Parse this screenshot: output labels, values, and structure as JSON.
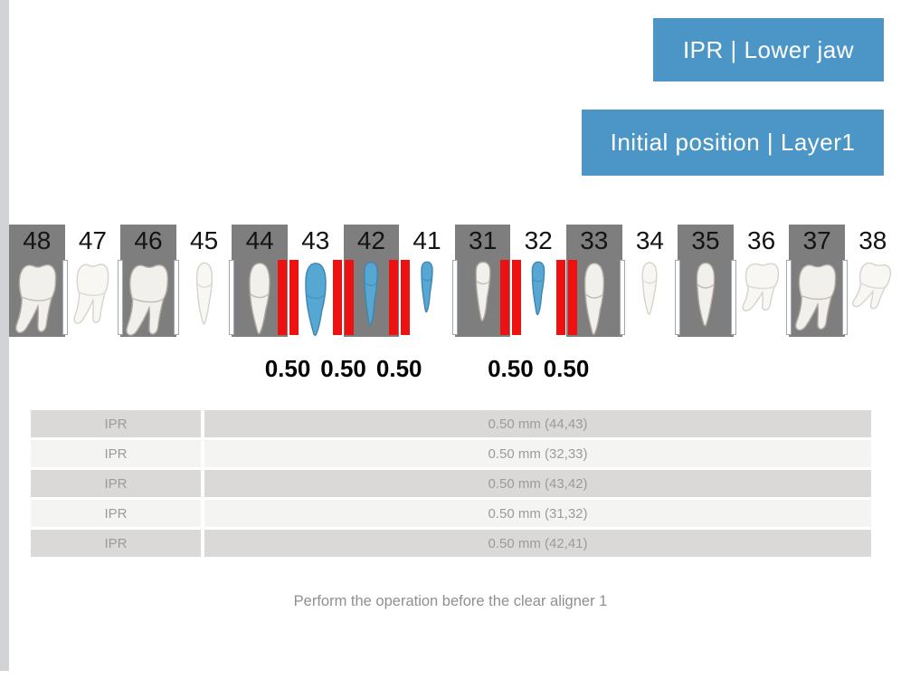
{
  "banners": {
    "primary": "IPR | Lower jaw",
    "secondary": "Initial position | Layer1"
  },
  "colors": {
    "banner_blue": "#4b96c6",
    "moved_tooth_blue": "#57a7d3",
    "ipr_red": "#ee1111",
    "tooth_box_gray": "#7e7e7e"
  },
  "teeth": [
    {
      "num": "48",
      "type": "molar",
      "boxed": true,
      "moved": false,
      "markers": [
        "right"
      ]
    },
    {
      "num": "47",
      "type": "molar",
      "boxed": false,
      "moved": false,
      "markers": []
    },
    {
      "num": "46",
      "type": "molar",
      "boxed": true,
      "moved": false,
      "markers": [
        "left",
        "right"
      ]
    },
    {
      "num": "45",
      "type": "premolar",
      "boxed": false,
      "moved": false,
      "markers": []
    },
    {
      "num": "44",
      "type": "canine",
      "boxed": true,
      "moved": false,
      "markers": [
        "left"
      ]
    },
    {
      "num": "43",
      "type": "canine",
      "boxed": false,
      "moved": true,
      "markers": []
    },
    {
      "num": "42",
      "type": "incisor",
      "boxed": true,
      "moved": true,
      "markers": []
    },
    {
      "num": "41",
      "type": "incisor",
      "boxed": false,
      "moved": true,
      "markers": []
    },
    {
      "num": "31",
      "type": "incisor",
      "boxed": true,
      "moved": false,
      "markers": [
        "left"
      ]
    },
    {
      "num": "32",
      "type": "incisor",
      "boxed": false,
      "moved": true,
      "markers": []
    },
    {
      "num": "33",
      "type": "canine",
      "boxed": true,
      "moved": false,
      "markers": [
        "right"
      ]
    },
    {
      "num": "34",
      "type": "premolar",
      "boxed": false,
      "moved": false,
      "markers": []
    },
    {
      "num": "35",
      "type": "premolar",
      "boxed": true,
      "moved": false,
      "markers": [
        "left",
        "right"
      ]
    },
    {
      "num": "36",
      "type": "molar",
      "boxed": false,
      "moved": false,
      "markers": []
    },
    {
      "num": "37",
      "type": "molar",
      "boxed": true,
      "moved": false,
      "markers": [
        "left",
        "right"
      ]
    },
    {
      "num": "38",
      "type": "molar",
      "boxed": false,
      "moved": false,
      "markers": []
    }
  ],
  "ipr_contacts": [
    {
      "between": [
        "44",
        "43"
      ],
      "value": "0.50"
    },
    {
      "between": [
        "43",
        "42"
      ],
      "value": "0.50"
    },
    {
      "between": [
        "42",
        "41"
      ],
      "value": "0.50"
    },
    {
      "between": [
        "31",
        "32"
      ],
      "value": "0.50"
    },
    {
      "between": [
        "32",
        "33"
      ],
      "value": "0.50"
    }
  ],
  "table": {
    "rows": [
      {
        "label": "IPR",
        "value": "0.50 mm (44,43)"
      },
      {
        "label": "IPR",
        "value": "0.50 mm (32,33)"
      },
      {
        "label": "IPR",
        "value": "0.50 mm (43,42)"
      },
      {
        "label": "IPR",
        "value": "0.50 mm (31,32)"
      },
      {
        "label": "IPR",
        "value": "0.50 mm (42,41)"
      }
    ]
  },
  "footer": {
    "note": "Perform the operation before the clear aligner 1"
  }
}
